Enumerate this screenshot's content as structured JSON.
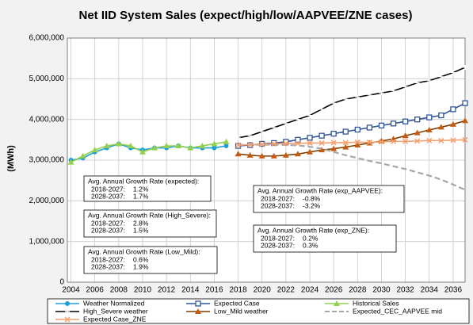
{
  "chart_data": {
    "type": "line",
    "title": "Net IID System Sales (expect/high/low/AAPVEE/ZNE  cases)",
    "y_label": "(MWh)",
    "x": [
      2004,
      2005,
      2006,
      2007,
      2008,
      2009,
      2010,
      2011,
      2012,
      2013,
      2014,
      2015,
      2016,
      2017,
      2018,
      2019,
      2020,
      2021,
      2022,
      2023,
      2024,
      2025,
      2026,
      2027,
      2028,
      2029,
      2030,
      2031,
      2032,
      2033,
      2034,
      2035,
      2036,
      2037
    ],
    "xlim": [
      2003.7,
      2037
    ],
    "xticks": [
      2004,
      2006,
      2008,
      2010,
      2012,
      2014,
      2016,
      2018,
      2020,
      2022,
      2024,
      2026,
      2028,
      2030,
      2032,
      2034,
      2036
    ],
    "ylim": [
      0,
      6000000
    ],
    "yticks": [
      {
        "value": 0,
        "label": "0"
      },
      {
        "value": 1000000,
        "label": "1,000,000"
      },
      {
        "value": 2000000,
        "label": "2,000,000"
      },
      {
        "value": 3000000,
        "label": "3,000,000"
      },
      {
        "value": 4000000,
        "label": "4,000,000"
      },
      {
        "value": 5000000,
        "label": "5,000,000"
      },
      {
        "value": 6000000,
        "label": "6,000,000"
      }
    ],
    "grid": true,
    "series": [
      {
        "name": "Weather Normalized",
        "color": "#1f9fd8",
        "marker": "circle",
        "dash": false,
        "values": [
          3000000,
          3050000,
          3200000,
          3300000,
          3400000,
          3300000,
          3250000,
          3300000,
          3300000,
          3350000,
          3300000,
          3300000,
          3300000,
          3350000,
          null,
          null,
          null,
          null,
          null,
          null,
          null,
          null,
          null,
          null,
          null,
          null,
          null,
          null,
          null,
          null,
          null,
          null,
          null,
          null
        ]
      },
      {
        "name": "Expected Case",
        "color": "#2f5597",
        "marker": "square",
        "dash": false,
        "values": [
          null,
          null,
          null,
          null,
          null,
          null,
          null,
          null,
          null,
          null,
          null,
          null,
          null,
          null,
          3350000,
          3370000,
          3400000,
          3420000,
          3450000,
          3500000,
          3550000,
          3600000,
          3650000,
          3700000,
          3750000,
          3800000,
          3850000,
          3900000,
          3950000,
          4000000,
          4050000,
          4100000,
          4250000,
          4400000
        ]
      },
      {
        "name": "Historical Sales",
        "color": "#92d050",
        "marker": "triangle",
        "dash": false,
        "values": [
          2950000,
          3100000,
          3250000,
          3350000,
          3400000,
          3350000,
          3200000,
          3300000,
          3350000,
          3350000,
          3300000,
          3350000,
          3400000,
          3450000,
          null,
          null,
          null,
          null,
          null,
          null,
          null,
          null,
          null,
          null,
          null,
          null,
          null,
          null,
          null,
          null,
          null,
          null,
          null,
          null
        ]
      },
      {
        "name": "High_Severe weather",
        "color": "#000000",
        "marker": "plus",
        "dash": false,
        "values": [
          null,
          null,
          null,
          null,
          null,
          null,
          null,
          null,
          null,
          null,
          null,
          null,
          null,
          null,
          3550000,
          3600000,
          3700000,
          3800000,
          3900000,
          4000000,
          4100000,
          4250000,
          4400000,
          4500000,
          4550000,
          4600000,
          4650000,
          4700000,
          4800000,
          4900000,
          4950000,
          5050000,
          5150000,
          5280000
        ]
      },
      {
        "name": "Low_Mild weather",
        "color": "#7f3f00",
        "marker": "triangle",
        "markerColor": "#c55a11",
        "dash": false,
        "values": [
          null,
          null,
          null,
          null,
          null,
          null,
          null,
          null,
          null,
          null,
          null,
          null,
          null,
          null,
          3150000,
          3120000,
          3100000,
          3100000,
          3120000,
          3150000,
          3200000,
          3250000,
          3280000,
          3320000,
          3370000,
          3420000,
          3470000,
          3520000,
          3600000,
          3670000,
          3740000,
          3810000,
          3880000,
          3970000
        ]
      },
      {
        "name": "Expected_CEC_AAPVEE mid",
        "color": "#a6a6a6",
        "marker": "none",
        "dash": true,
        "values": [
          null,
          null,
          null,
          null,
          null,
          null,
          null,
          null,
          null,
          null,
          null,
          null,
          null,
          null,
          3370000,
          3380000,
          3380000,
          3380000,
          3370000,
          3360000,
          3330000,
          3280000,
          3200000,
          3120000,
          3050000,
          2980000,
          2920000,
          2850000,
          2780000,
          2700000,
          2620000,
          2520000,
          2400000,
          2270000
        ]
      },
      {
        "name": "Expected Case_ZNE",
        "color": "#f4a070",
        "marker": "x",
        "dash": false,
        "values": [
          null,
          null,
          null,
          null,
          null,
          null,
          null,
          null,
          null,
          null,
          null,
          null,
          null,
          null,
          3370000,
          3380000,
          3390000,
          3400000,
          3410000,
          3410000,
          3420000,
          3420000,
          3430000,
          3430000,
          3440000,
          3440000,
          3450000,
          3460000,
          3460000,
          3470000,
          3480000,
          3480000,
          3490000,
          3500000
        ]
      }
    ],
    "annotations": [
      {
        "title": "Avg. Annual Growth Rate (expected):",
        "rows": [
          [
            "2018-2027:",
            "1.2%"
          ],
          [
            "2028-2037:",
            "1.7%"
          ]
        ]
      },
      {
        "title": "Avg. Annual Growth Rate (High_Severe):",
        "rows": [
          [
            "2018-2027:",
            "2.8%"
          ],
          [
            "2028-2037:",
            "1.5%"
          ]
        ]
      },
      {
        "title": "Avg. Annual Growth Rate (Low_Mild):",
        "rows": [
          [
            "2018-2027:",
            "0.6%"
          ],
          [
            "2028-2037:",
            "1.9%"
          ]
        ]
      },
      {
        "title": "Avg. Annual Growth Rate (exp_AAPVEE):",
        "rows": [
          [
            "2018-2027:",
            "-0.8%"
          ],
          [
            "2028-2037:",
            "-3.2%"
          ]
        ]
      },
      {
        "title": "Avg. Annual Growth Rate (exp_ZNE):",
        "rows": [
          [
            "2018-2027:",
            "0.2%"
          ],
          [
            "2028-2037:",
            "0.3%"
          ]
        ]
      }
    ]
  }
}
